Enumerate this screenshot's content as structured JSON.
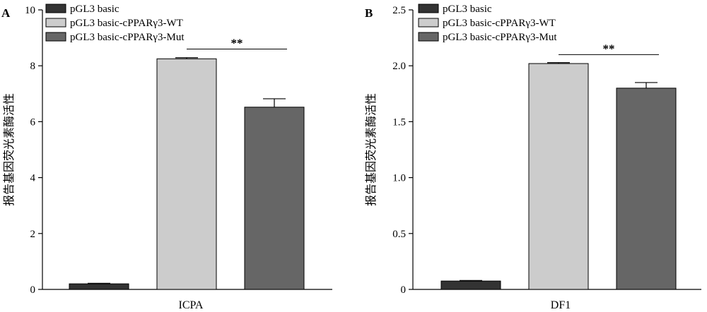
{
  "chart_data": [
    {
      "type": "bar",
      "panel_label": "A",
      "xlabel": "ICPA",
      "ylabel": "报告基因荧光素酶活性",
      "ylim": [
        0,
        10
      ],
      "yticks": [
        0,
        2,
        4,
        6,
        8,
        10
      ],
      "series": [
        {
          "name": "pGL3 basic",
          "value": 0.2,
          "error": 0.02,
          "color": "#333333"
        },
        {
          "name": "pGL3 basic-cPPARγ3-WT",
          "value": 8.25,
          "error": 0.04,
          "color": "#cccccc"
        },
        {
          "name": "pGL3 basic-cPPARγ3-Mut",
          "value": 6.52,
          "error": 0.3,
          "color": "#666666"
        }
      ],
      "significance": {
        "between": [
          1,
          2
        ],
        "label": "**",
        "y": 8.6
      },
      "legend_position": "top-left"
    },
    {
      "type": "bar",
      "panel_label": "B",
      "xlabel": "DF1",
      "ylabel": "报告基因荧光素酶活性",
      "ylim": [
        0,
        2.5
      ],
      "yticks": [
        "0",
        "0.5",
        "1.0",
        "1.5",
        "2.0",
        "2.5"
      ],
      "series": [
        {
          "name": "pGL3 basic",
          "value": 0.075,
          "error": 0.005,
          "color": "#333333"
        },
        {
          "name": "pGL3 basic-cPPARγ3-WT",
          "value": 2.02,
          "error": 0.008,
          "color": "#cccccc"
        },
        {
          "name": "pGL3 basic-cPPARγ3-Mut",
          "value": 1.8,
          "error": 0.05,
          "color": "#666666"
        }
      ],
      "significance": {
        "between": [
          1,
          2
        ],
        "label": "**",
        "y": 2.1
      },
      "legend_position": "top-left"
    }
  ]
}
